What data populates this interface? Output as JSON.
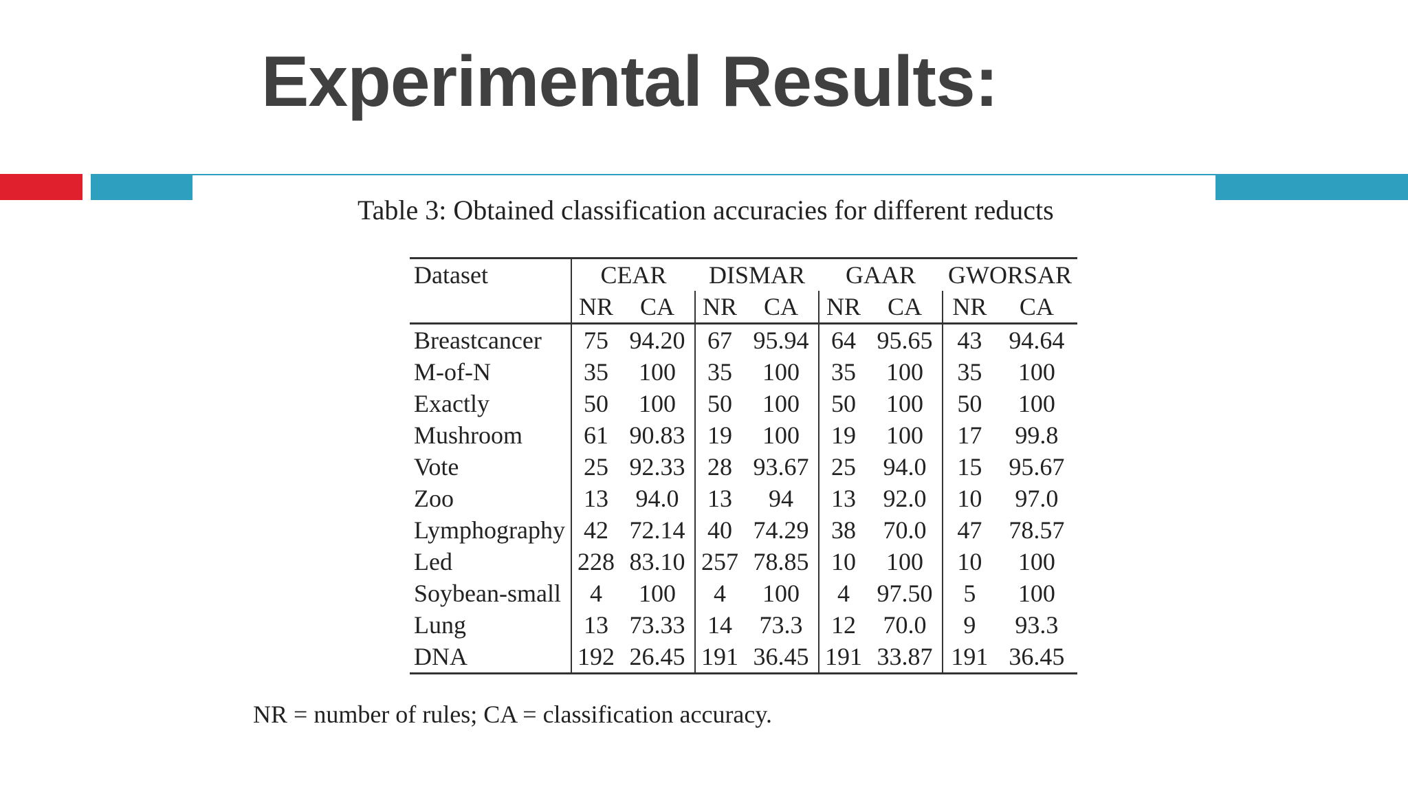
{
  "slide": {
    "title": "Experimental Results:",
    "accent_colors": [
      "#e1202e",
      "#2e9fbf"
    ]
  },
  "table": {
    "caption": "Table 3: Obtained classification accuracies for different reducts",
    "dataset_header": "Dataset",
    "methods": [
      "CEAR",
      "DISMAR",
      "GAAR",
      "GWORSAR"
    ],
    "sub_headers": [
      "NR",
      "CA"
    ],
    "rows": [
      {
        "dataset": "Breastcancer",
        "values": [
          "75",
          "94.20",
          "67",
          "95.94",
          "64",
          "95.65",
          "43",
          "94.64"
        ]
      },
      {
        "dataset": "M-of-N",
        "values": [
          "35",
          "100",
          "35",
          "100",
          "35",
          "100",
          "35",
          "100"
        ]
      },
      {
        "dataset": "Exactly",
        "values": [
          "50",
          "100",
          "50",
          "100",
          "50",
          "100",
          "50",
          "100"
        ]
      },
      {
        "dataset": "Mushroom",
        "values": [
          "61",
          "90.83",
          "19",
          "100",
          "19",
          "100",
          "17",
          "99.8"
        ]
      },
      {
        "dataset": "Vote",
        "values": [
          "25",
          "92.33",
          "28",
          "93.67",
          "25",
          "94.0",
          "15",
          "95.67"
        ]
      },
      {
        "dataset": "Zoo",
        "values": [
          "13",
          "94.0",
          "13",
          "94",
          "13",
          "92.0",
          "10",
          "97.0"
        ]
      },
      {
        "dataset": "Lymphography",
        "values": [
          "42",
          "72.14",
          "40",
          "74.29",
          "38",
          "70.0",
          "47",
          "78.57"
        ]
      },
      {
        "dataset": "Led",
        "values": [
          "228",
          "83.10",
          "257",
          "78.85",
          "10",
          "100",
          "10",
          "100"
        ]
      },
      {
        "dataset": "Soybean-small",
        "values": [
          "4",
          "100",
          "4",
          "100",
          "4",
          "97.50",
          "5",
          "100"
        ]
      },
      {
        "dataset": "Lung",
        "values": [
          "13",
          "73.33",
          "14",
          "73.3",
          "12",
          "70.0",
          "9",
          "93.3"
        ]
      },
      {
        "dataset": "DNA",
        "values": [
          "192",
          "26.45",
          "191",
          "36.45",
          "191",
          "33.87",
          "191",
          "36.45"
        ]
      }
    ],
    "footnote": "NR = number of rules; CA = classification accuracy."
  }
}
